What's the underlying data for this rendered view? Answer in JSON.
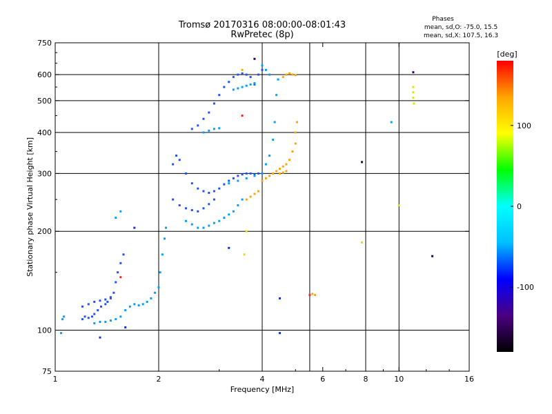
{
  "title": "Tromsø 20170316 08:00:00-08:01:43",
  "subtitle": "RwPretec (8p)",
  "stats": {
    "heading": "Phases",
    "line_o": "mean, sd,O: -75.0, 15.5",
    "line_x": "mean, sd,X: 107.5, 16.3"
  },
  "colorbar": {
    "unit": "[deg]",
    "ticks": [
      {
        "value": 100,
        "label": "100"
      },
      {
        "value": 0,
        "label": "0"
      },
      {
        "value": -100,
        "label": "-100"
      }
    ],
    "range": [
      -180,
      180
    ],
    "stops": [
      "#000000",
      "#4b0082",
      "#0000ff",
      "#00bfff",
      "#00ffff",
      "#00ff00",
      "#ffff00",
      "#ffa500",
      "#ff0000"
    ]
  },
  "chart_data": {
    "type": "scatter",
    "title": "Tromsø 20170316 08:00:00-08:01:43",
    "subtitle": "RwPretec (8p)",
    "xlabel": "Frequency [MHz]",
    "ylabel": "Stationary phase Virtual Height [km]",
    "xscale": "log",
    "yscale": "log",
    "xlim": [
      1,
      16
    ],
    "ylim": [
      75,
      750
    ],
    "xticks": [
      {
        "value": 1,
        "label": "1"
      },
      {
        "value": 2,
        "label": "2"
      },
      {
        "value": 4,
        "label": "4"
      },
      {
        "value": 6,
        "label": "6"
      },
      {
        "value": 8,
        "label": "8"
      },
      {
        "value": 10,
        "label": "10"
      },
      {
        "value": 16,
        "label": "16"
      }
    ],
    "yticks": [
      {
        "value": 75,
        "label": "75"
      },
      {
        "value": 100,
        "label": "100"
      },
      {
        "value": 200,
        "label": "200"
      },
      {
        "value": 300,
        "label": "300"
      },
      {
        "value": 400,
        "label": "400"
      },
      {
        "value": 500,
        "label": "500"
      },
      {
        "value": 600,
        "label": "600"
      },
      {
        "value": 750,
        "label": "750"
      }
    ],
    "vgrid": [
      2,
      4,
      5.5,
      8,
      10
    ],
    "hgrid": [
      100,
      200,
      300,
      400,
      500,
      600
    ],
    "grid": true,
    "series": [
      {
        "phase": -100,
        "color": "#2050ff",
        "points": [
          [
            1.2,
            108
          ],
          [
            1.22,
            110
          ],
          [
            1.25,
            109
          ],
          [
            1.28,
            110
          ],
          [
            1.3,
            112
          ],
          [
            1.33,
            115
          ],
          [
            1.36,
            118
          ],
          [
            1.4,
            120
          ],
          [
            1.42,
            122
          ],
          [
            1.45,
            125
          ],
          [
            1.48,
            130
          ],
          [
            1.5,
            140
          ],
          [
            1.52,
            150
          ],
          [
            1.55,
            160
          ],
          [
            1.58,
            170
          ],
          [
            1.2,
            118
          ],
          [
            1.25,
            120
          ],
          [
            1.3,
            122
          ],
          [
            1.35,
            123
          ],
          [
            1.4,
            124
          ],
          [
            1.45,
            126
          ],
          [
            2.2,
            320
          ],
          [
            2.25,
            340
          ],
          [
            2.3,
            330
          ],
          [
            2.4,
            300
          ],
          [
            2.5,
            280
          ],
          [
            2.6,
            270
          ],
          [
            2.7,
            265
          ],
          [
            2.8,
            262
          ],
          [
            2.9,
            265
          ],
          [
            3.0,
            270
          ],
          [
            3.1,
            278
          ],
          [
            3.2,
            285
          ],
          [
            3.3,
            290
          ],
          [
            3.4,
            295
          ],
          [
            3.5,
            298
          ],
          [
            3.6,
            300
          ],
          [
            3.7,
            300
          ],
          [
            3.8,
            298
          ],
          [
            3.9,
            300
          ],
          [
            2.5,
            410
          ],
          [
            2.6,
            420
          ],
          [
            2.7,
            440
          ],
          [
            2.8,
            460
          ],
          [
            2.9,
            490
          ],
          [
            3.0,
            520
          ],
          [
            3.1,
            550
          ],
          [
            3.2,
            570
          ],
          [
            3.3,
            590
          ],
          [
            3.4,
            600
          ],
          [
            3.5,
            605
          ],
          [
            3.6,
            600
          ],
          [
            3.7,
            590
          ],
          [
            3.8,
            560
          ],
          [
            3.9,
            600
          ],
          [
            4.0,
            620
          ],
          [
            2.2,
            250
          ],
          [
            2.3,
            240
          ],
          [
            2.4,
            235
          ],
          [
            2.5,
            232
          ],
          [
            2.6,
            230
          ],
          [
            2.7,
            235
          ],
          [
            2.8,
            242
          ],
          [
            2.9,
            250
          ]
        ]
      },
      {
        "phase": -60,
        "color": "#00a0ff",
        "points": [
          [
            1.05,
            108
          ],
          [
            1.06,
            110
          ],
          [
            1.04,
            98
          ],
          [
            1.3,
            105
          ],
          [
            1.35,
            106
          ],
          [
            1.4,
            106
          ],
          [
            1.45,
            107
          ],
          [
            1.5,
            108
          ],
          [
            1.55,
            110
          ],
          [
            1.6,
            115
          ],
          [
            1.65,
            118
          ],
          [
            1.7,
            120
          ],
          [
            1.75,
            119
          ],
          [
            1.8,
            120
          ],
          [
            1.85,
            122
          ],
          [
            1.9,
            125
          ],
          [
            1.95,
            130
          ],
          [
            2.0,
            135
          ],
          [
            2.02,
            150
          ],
          [
            2.05,
            170
          ],
          [
            2.08,
            190
          ],
          [
            2.1,
            205
          ],
          [
            1.5,
            220
          ],
          [
            1.55,
            230
          ],
          [
            2.4,
            215
          ],
          [
            2.5,
            210
          ],
          [
            2.6,
            205
          ],
          [
            2.7,
            205
          ],
          [
            2.8,
            208
          ],
          [
            2.9,
            212
          ],
          [
            3.0,
            215
          ],
          [
            3.1,
            220
          ],
          [
            3.2,
            225
          ],
          [
            3.3,
            230
          ],
          [
            3.4,
            240
          ],
          [
            3.5,
            250
          ],
          [
            2.7,
            400
          ],
          [
            2.8,
            405
          ],
          [
            2.9,
            410
          ],
          [
            3.0,
            412
          ],
          [
            3.3,
            540
          ],
          [
            3.4,
            545
          ],
          [
            3.5,
            550
          ],
          [
            3.6,
            555
          ],
          [
            3.7,
            560
          ],
          [
            3.8,
            565
          ],
          [
            4.0,
            640
          ],
          [
            4.1,
            620
          ],
          [
            4.2,
            600
          ],
          [
            3.2,
            280
          ],
          [
            3.4,
            285
          ],
          [
            3.6,
            290
          ],
          [
            3.8,
            295
          ],
          [
            4.0,
            300
          ],
          [
            4.1,
            320
          ],
          [
            4.2,
            340
          ],
          [
            4.3,
            380
          ],
          [
            4.35,
            430
          ],
          [
            4.4,
            520
          ],
          [
            4.45,
            580
          ],
          [
            9.5,
            430
          ]
        ]
      },
      {
        "phase": 120,
        "color": "#ffa500",
        "points": [
          [
            3.6,
            250
          ],
          [
            3.7,
            255
          ],
          [
            3.8,
            260
          ],
          [
            3.9,
            265
          ],
          [
            4.0,
            285
          ],
          [
            4.1,
            290
          ],
          [
            4.2,
            295
          ],
          [
            4.3,
            300
          ],
          [
            4.4,
            305
          ],
          [
            4.5,
            310
          ],
          [
            4.6,
            315
          ],
          [
            4.7,
            320
          ],
          [
            4.8,
            330
          ],
          [
            4.9,
            350
          ],
          [
            5.0,
            370
          ],
          [
            5.0,
            400
          ],
          [
            5.05,
            430
          ],
          [
            4.5,
            300
          ],
          [
            4.6,
            302
          ],
          [
            4.7,
            305
          ],
          [
            3.5,
            620
          ],
          [
            4.6,
            590
          ],
          [
            4.7,
            600
          ],
          [
            4.8,
            605
          ],
          [
            4.9,
            600
          ],
          [
            5.0,
            598
          ],
          [
            5.6,
            129
          ],
          [
            5.7,
            128
          ]
        ]
      },
      {
        "phase": 110,
        "color": "#e8e000",
        "points": [
          [
            3.6,
            200
          ],
          [
            3.55,
            170
          ],
          [
            7.8,
            185
          ],
          [
            10.0,
            240
          ],
          [
            11.0,
            530
          ],
          [
            11.0,
            510
          ],
          [
            11.05,
            490
          ],
          [
            11.0,
            550
          ]
        ]
      },
      {
        "phase": -150,
        "color": "#2a0060",
        "points": [
          [
            3.8,
            670
          ],
          [
            7.8,
            325
          ],
          [
            11.0,
            610
          ],
          [
            12.5,
            168
          ]
        ]
      },
      {
        "phase": 170,
        "color": "#ff2020",
        "points": [
          [
            1.55,
            145
          ],
          [
            3.5,
            450
          ],
          [
            5.5,
            128
          ]
        ]
      },
      {
        "phase": -95,
        "color": "#1030e0",
        "points": [
          [
            1.35,
            95
          ],
          [
            1.6,
            102
          ],
          [
            1.7,
            205
          ],
          [
            3.2,
            178
          ],
          [
            4.5,
            98
          ],
          [
            4.5,
            125
          ]
        ]
      }
    ]
  }
}
